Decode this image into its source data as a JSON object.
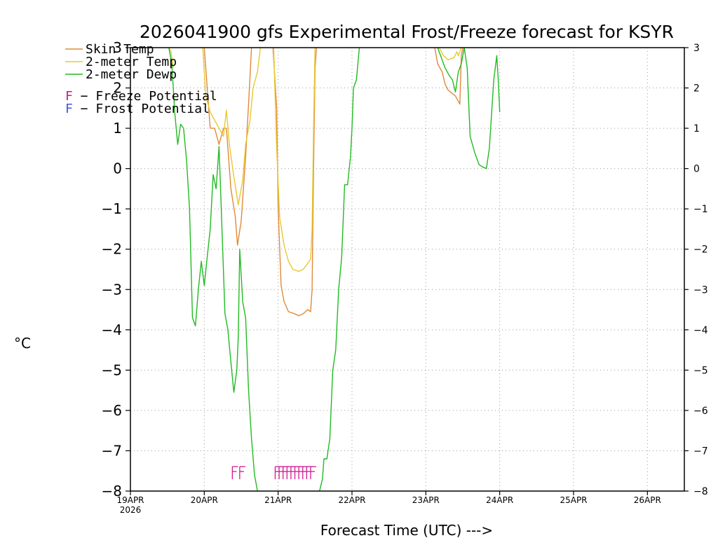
{
  "chart_data": {
    "type": "line",
    "title": "2026041900 gfs Experimental Frost/Freeze forecast for KSYR",
    "xlabel": "Forecast Time (UTC) --->",
    "ylabel": "°C",
    "ylim": [
      -8,
      3
    ],
    "y_ticks": [
      3,
      2,
      1,
      0,
      -1,
      -2,
      -3,
      -4,
      -5,
      -6,
      -7,
      -8
    ],
    "y_tick_labels_left": [
      "3",
      "2",
      "1",
      "0",
      "−1",
      "−2",
      "−3",
      "−4",
      "−5",
      "−6",
      "−7",
      "−8"
    ],
    "y_tick_labels_right": [
      "3",
      "2",
      "1",
      "0",
      "−1",
      "−2",
      "−3",
      "−4",
      "−5",
      "−6",
      "−7",
      "−8"
    ],
    "xlim_days": [
      0,
      7.5
    ],
    "x_ticks": [
      {
        "day": 0,
        "label": "19APR",
        "sub": "2026"
      },
      {
        "day": 1,
        "label": "20APR",
        "sub": ""
      },
      {
        "day": 2,
        "label": "21APR",
        "sub": ""
      },
      {
        "day": 3,
        "label": "22APR",
        "sub": ""
      },
      {
        "day": 4,
        "label": "23APR",
        "sub": ""
      },
      {
        "day": 5,
        "label": "24APR",
        "sub": ""
      },
      {
        "day": 6,
        "label": "25APR",
        "sub": ""
      },
      {
        "day": 7,
        "label": "26APR",
        "sub": ""
      }
    ],
    "grid": true,
    "legend": [
      {
        "name": "Skin Temp",
        "color": "#e08a3a"
      },
      {
        "name": "2-meter Temp",
        "color": "#e8c830"
      },
      {
        "name": "2-meter Dewp",
        "color": "#22bb22"
      }
    ],
    "potential_legend": [
      {
        "letter": "F",
        "text": " − Freeze Potential",
        "color": "#d01890"
      },
      {
        "letter": "F",
        "text": " − Frost Potential",
        "color": "#4455dd"
      }
    ],
    "series": [
      {
        "name": "Skin Temp",
        "color": "#e08a3a",
        "segments": [
          [
            [
              1.0,
              3.0
            ],
            [
              1.08,
              1.0
            ],
            [
              1.14,
              1.0
            ],
            [
              1.2,
              0.6
            ],
            [
              1.26,
              1.0
            ],
            [
              1.3,
              1.0
            ],
            [
              1.36,
              -0.5
            ],
            [
              1.42,
              -1.2
            ],
            [
              1.45,
              -1.9
            ],
            [
              1.5,
              -1.3
            ],
            [
              1.56,
              0.3
            ],
            [
              1.6,
              1.6
            ],
            [
              1.64,
              3.0
            ]
          ],
          [
            [
              1.93,
              3.0
            ],
            [
              1.98,
              1.5
            ],
            [
              2.0,
              -1.0
            ],
            [
              2.04,
              -2.9
            ],
            [
              2.08,
              -3.3
            ],
            [
              2.14,
              -3.55
            ],
            [
              2.22,
              -3.6
            ],
            [
              2.28,
              -3.65
            ],
            [
              2.34,
              -3.6
            ],
            [
              2.4,
              -3.5
            ],
            [
              2.44,
              -3.55
            ],
            [
              2.46,
              -3.0
            ],
            [
              2.48,
              0.0
            ],
            [
              2.5,
              2.5
            ],
            [
              2.52,
              3.0
            ]
          ],
          [
            [
              4.12,
              3.0
            ],
            [
              4.16,
              2.6
            ],
            [
              4.22,
              2.4
            ],
            [
              4.26,
              2.1
            ],
            [
              4.3,
              1.95
            ],
            [
              4.4,
              1.8
            ],
            [
              4.46,
              1.6
            ],
            [
              4.48,
              2.8
            ],
            [
              4.5,
              3.0
            ]
          ]
        ]
      },
      {
        "name": "2-meter Temp",
        "color": "#e8c830",
        "segments": [
          [
            [
              0.52,
              3.0
            ],
            [
              0.55,
              2.9
            ],
            [
              0.58,
              2.5
            ]
          ],
          [
            [
              0.98,
              3.0
            ],
            [
              1.02,
              1.8
            ],
            [
              1.08,
              1.4
            ],
            [
              1.14,
              1.2
            ],
            [
              1.2,
              1.0
            ],
            [
              1.26,
              0.8
            ],
            [
              1.3,
              1.45
            ],
            [
              1.34,
              0.6
            ],
            [
              1.4,
              -0.2
            ],
            [
              1.46,
              -0.9
            ],
            [
              1.52,
              -0.3
            ],
            [
              1.56,
              0.6
            ],
            [
              1.62,
              1.2
            ],
            [
              1.66,
              2.0
            ],
            [
              1.72,
              2.4
            ],
            [
              1.76,
              3.0
            ]
          ],
          [
            [
              1.94,
              3.0
            ],
            [
              1.98,
              0.5
            ],
            [
              2.02,
              -1.2
            ],
            [
              2.08,
              -1.9
            ],
            [
              2.14,
              -2.3
            ],
            [
              2.2,
              -2.5
            ],
            [
              2.28,
              -2.55
            ],
            [
              2.34,
              -2.5
            ],
            [
              2.4,
              -2.35
            ],
            [
              2.44,
              -2.25
            ],
            [
              2.46,
              -1.5
            ],
            [
              2.48,
              1.0
            ],
            [
              2.5,
              3.0
            ]
          ],
          [
            [
              4.18,
              3.0
            ],
            [
              4.24,
              2.8
            ],
            [
              4.3,
              2.7
            ],
            [
              4.38,
              2.75
            ],
            [
              4.42,
              2.9
            ],
            [
              4.44,
              2.8
            ],
            [
              4.46,
              2.9
            ],
            [
              4.48,
              3.0
            ]
          ]
        ]
      },
      {
        "name": "2-meter Dewp",
        "color": "#22bb22",
        "segments": [
          [
            [
              0.52,
              3.0
            ],
            [
              0.56,
              2.6
            ],
            [
              0.6,
              1.4
            ],
            [
              0.64,
              0.6
            ],
            [
              0.68,
              1.1
            ],
            [
              0.72,
              1.0
            ],
            [
              0.76,
              0.2
            ],
            [
              0.8,
              -1.0
            ],
            [
              0.84,
              -3.7
            ],
            [
              0.88,
              -3.9
            ],
            [
              0.92,
              -3.0
            ],
            [
              0.96,
              -2.3
            ],
            [
              1.0,
              -2.9
            ],
            [
              1.04,
              -2.2
            ],
            [
              1.08,
              -1.5
            ],
            [
              1.12,
              -0.15
            ],
            [
              1.16,
              -0.5
            ],
            [
              1.2,
              0.55
            ],
            [
              1.24,
              -1.5
            ],
            [
              1.28,
              -3.6
            ],
            [
              1.32,
              -4.0
            ],
            [
              1.36,
              -4.8
            ],
            [
              1.4,
              -5.55
            ],
            [
              1.44,
              -5.0
            ],
            [
              1.46,
              -4.2
            ],
            [
              1.48,
              -2.0
            ],
            [
              1.52,
              -3.3
            ],
            [
              1.56,
              -3.7
            ],
            [
              1.6,
              -5.5
            ],
            [
              1.64,
              -6.7
            ],
            [
              1.68,
              -7.6
            ],
            [
              1.72,
              -8.0
            ]
          ],
          [
            [
              2.56,
              -8.0
            ],
            [
              2.6,
              -7.7
            ],
            [
              2.62,
              -7.2
            ],
            [
              2.66,
              -7.2
            ],
            [
              2.7,
              -6.7
            ],
            [
              2.74,
              -5.0
            ],
            [
              2.78,
              -4.5
            ],
            [
              2.82,
              -3.0
            ],
            [
              2.86,
              -2.2
            ],
            [
              2.9,
              -0.4
            ],
            [
              2.94,
              -0.4
            ],
            [
              2.98,
              0.3
            ],
            [
              3.0,
              1.0
            ],
            [
              3.02,
              2.0
            ],
            [
              3.06,
              2.2
            ],
            [
              3.1,
              3.0
            ]
          ],
          [
            [
              4.16,
              3.0
            ],
            [
              4.2,
              2.8
            ],
            [
              4.26,
              2.5
            ],
            [
              4.32,
              2.3
            ],
            [
              4.36,
              2.2
            ],
            [
              4.4,
              1.9
            ],
            [
              4.44,
              2.4
            ],
            [
              4.48,
              2.6
            ],
            [
              4.52,
              3.0
            ],
            [
              4.56,
              2.5
            ],
            [
              4.6,
              0.8
            ],
            [
              4.66,
              0.4
            ],
            [
              4.72,
              0.1
            ],
            [
              4.76,
              0.05
            ],
            [
              4.82,
              0.0
            ],
            [
              4.86,
              0.5
            ],
            [
              4.92,
              2.2
            ],
            [
              4.96,
              2.8
            ],
            [
              4.98,
              2.2
            ],
            [
              5.0,
              1.4
            ]
          ]
        ]
      }
    ],
    "freeze_marks": [
      {
        "start_day": 1.38,
        "end_day": 1.48,
        "label": "FF"
      },
      {
        "start_day": 1.96,
        "end_day": 2.44,
        "label": "FFFFFFFFFF"
      }
    ]
  }
}
